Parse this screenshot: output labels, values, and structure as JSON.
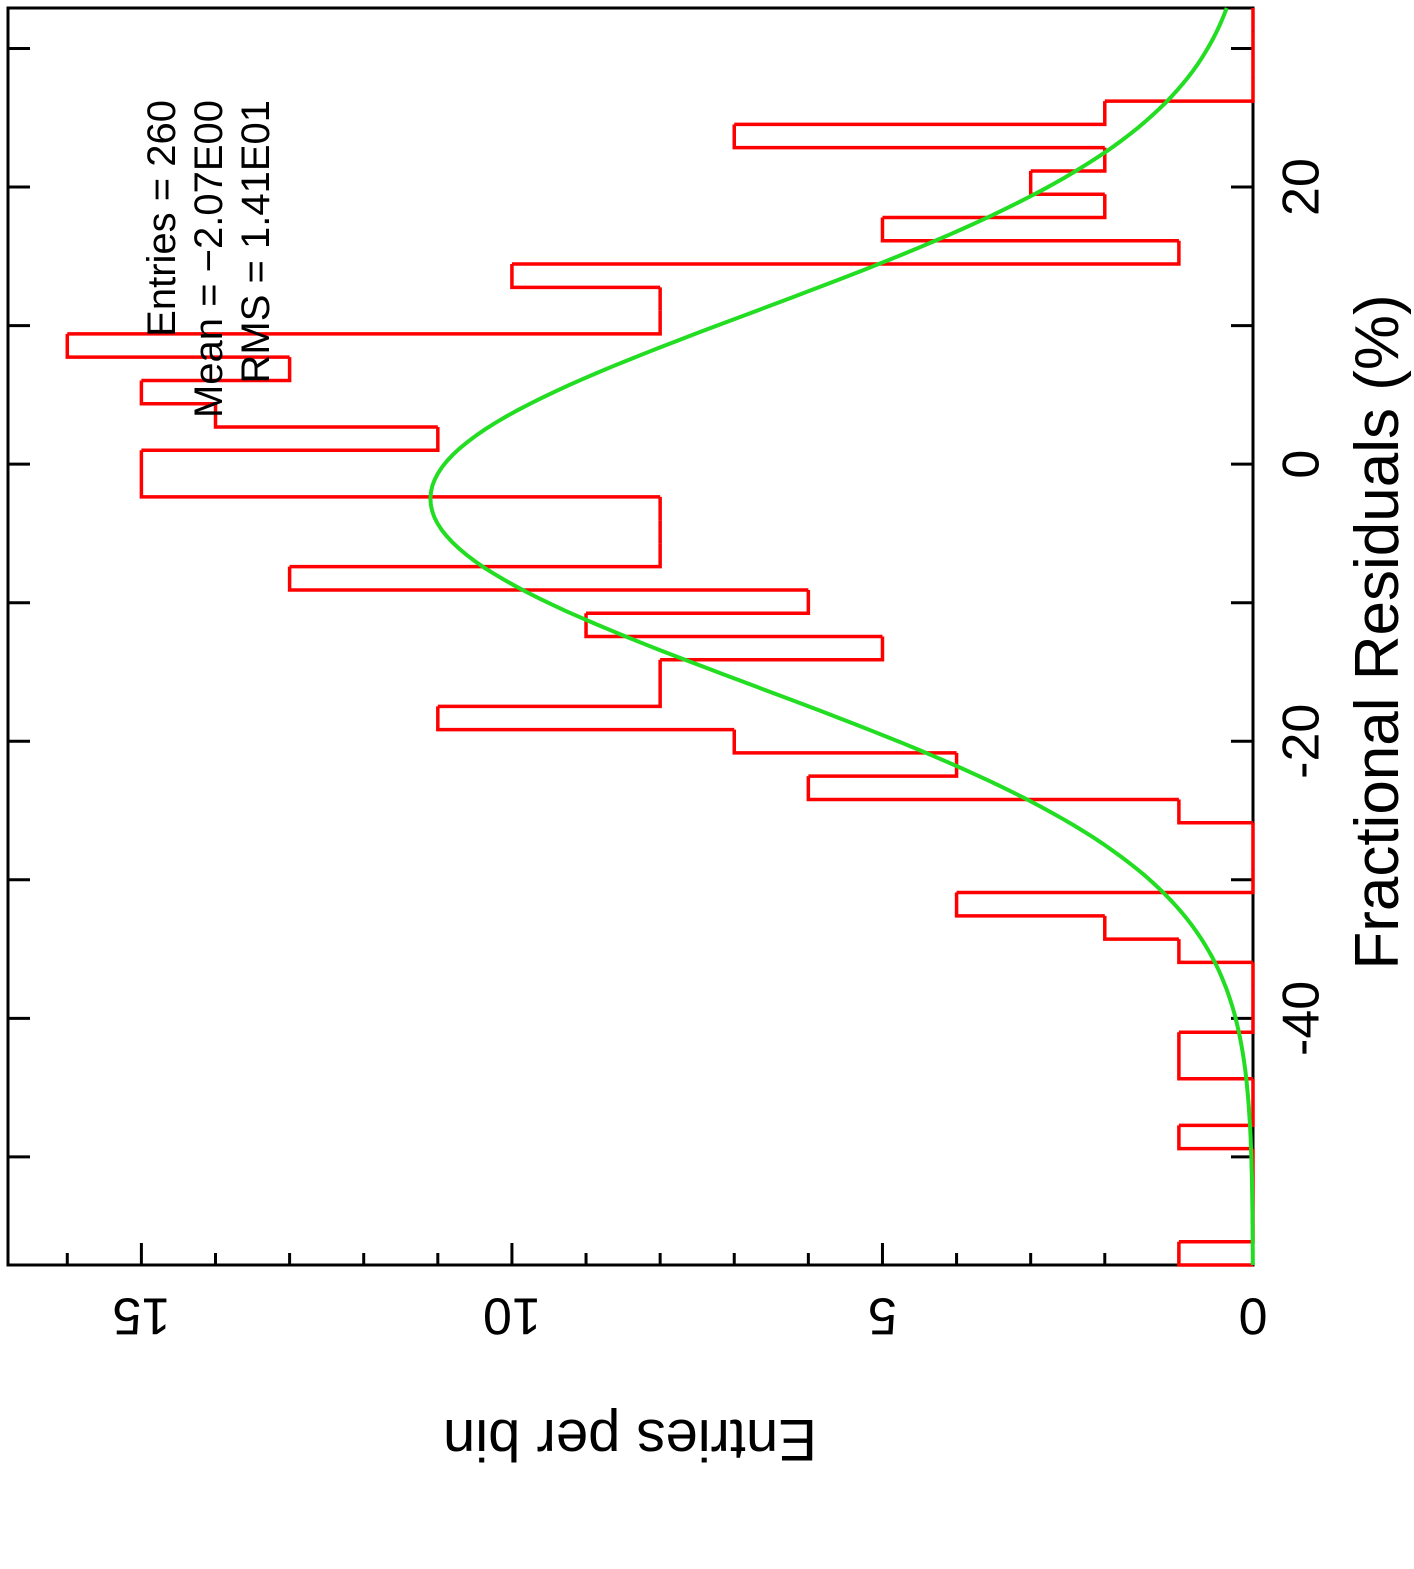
{
  "chart_data": {
    "type": "histogram",
    "x_label": "Fractional Residuals (%)",
    "y_label": "Entries per bin",
    "stats": [
      "Entries = 260",
      "Mean = −2.07E00",
      "RMS = 1.41E01"
    ],
    "bins": [
      -57.8,
      -56.12,
      -54.44,
      -52.76,
      -51.08,
      -49.4,
      -47.72,
      -46.04,
      -44.36,
      -42.68,
      -41.0,
      -39.32,
      -37.64,
      -35.96,
      -34.28,
      -32.6,
      -30.92,
      -29.24,
      -27.56,
      -25.88,
      -24.2,
      -22.52,
      -20.84,
      -19.16,
      -17.48,
      -15.8,
      -14.12,
      -12.44,
      -10.76,
      -9.08,
      -7.4,
      -5.72,
      -4.04,
      -2.36,
      -0.68,
      1.0,
      2.68,
      4.36,
      6.04,
      7.72,
      9.4,
      11.08,
      12.76,
      14.44,
      16.12,
      17.8,
      19.48,
      21.16,
      22.84,
      24.52,
      26.2,
      27.88,
      29.56,
      31.24,
      32.92
    ],
    "values": [
      1,
      0,
      0,
      0,
      0,
      1,
      0,
      0,
      1,
      1,
      0,
      0,
      0,
      1,
      2,
      4,
      0,
      0,
      0,
      1,
      6,
      4,
      7,
      11,
      8,
      8,
      5,
      9,
      6,
      13,
      8,
      8,
      8,
      15,
      15,
      11,
      14,
      15,
      13,
      16,
      8,
      8,
      10,
      1,
      5,
      2,
      3,
      2,
      7,
      2,
      0,
      0,
      0,
      0
    ],
    "color": "#ff0000",
    "fit": {
      "amplitude": 11.1,
      "mean": -2.5,
      "sigma": 13.5,
      "color": "#22dd22"
    },
    "xlim": [
      -57.8,
      32.92
    ],
    "xticks": [
      -40,
      -20,
      0,
      20
    ],
    "xticks_minor": [
      -50,
      -30,
      -10,
      10,
      30
    ],
    "ylim": [
      0,
      16.8
    ],
    "yticks": [
      0,
      5,
      10,
      15
    ],
    "yticks_minor": [
      1,
      2,
      3,
      4,
      6,
      7,
      8,
      9,
      11,
      12,
      13,
      14,
      16
    ]
  }
}
